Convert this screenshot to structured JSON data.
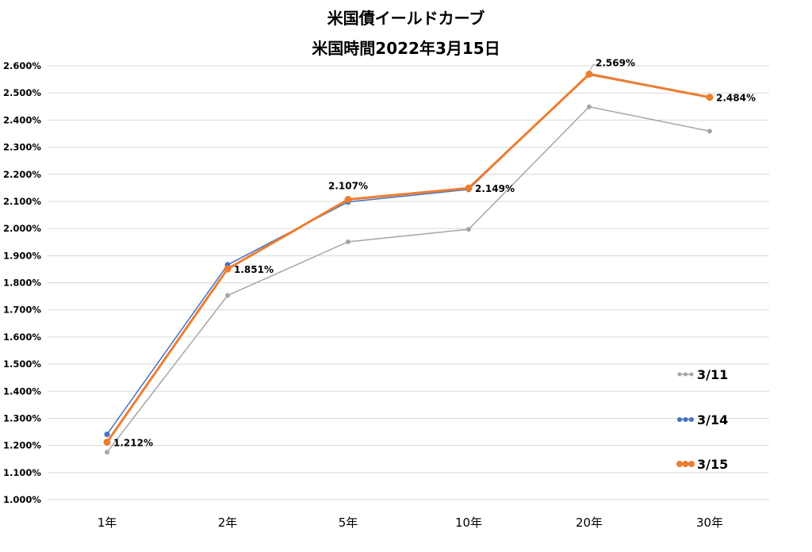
{
  "chart_data": {
    "type": "line",
    "title": "米国債イールドカーブ",
    "subtitle": "米国時間2022年3月15日",
    "categories": [
      "1年",
      "2年",
      "5年",
      "10年",
      "20年",
      "30年"
    ],
    "ylim": [
      1.0,
      2.6
    ],
    "ytick_step": 0.1,
    "yticks": [
      "1.000%",
      "1.100%",
      "1.200%",
      "1.300%",
      "1.400%",
      "1.500%",
      "1.600%",
      "1.700%",
      "1.800%",
      "1.900%",
      "2.000%",
      "2.100%",
      "2.200%",
      "2.300%",
      "2.400%",
      "2.500%",
      "2.600%"
    ],
    "grid": true,
    "legend_position": "right",
    "series": [
      {
        "name": "3/11",
        "color": "#A5A5A5",
        "values": [
          1.175,
          1.753,
          1.951,
          1.997,
          2.449,
          2.359
        ]
      },
      {
        "name": "3/14",
        "color": "#4472C4",
        "values": [
          1.241,
          1.866,
          2.098,
          2.144,
          2.572,
          2.485
        ]
      },
      {
        "name": "3/15",
        "color": "#ED7D31",
        "values": [
          1.212,
          1.851,
          2.107,
          2.149,
          2.569,
          2.484
        ]
      }
    ],
    "data_labels": [
      "1.212%",
      "1.851%",
      "2.107%",
      "2.149%",
      "2.569%",
      "2.484%"
    ]
  }
}
